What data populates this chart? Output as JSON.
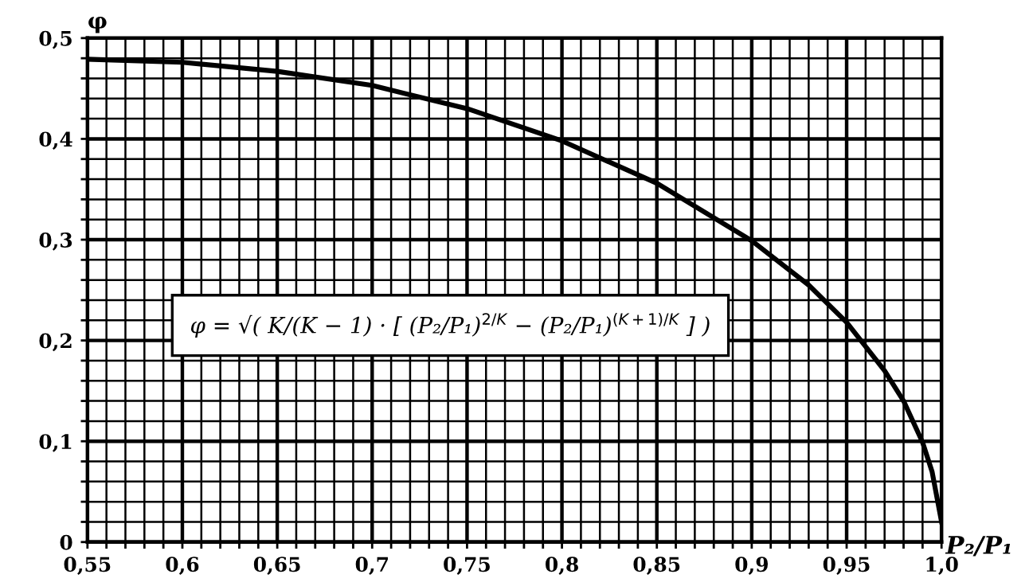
{
  "chart_data": {
    "type": "line",
    "xlabel": "P₂/P₁",
    "ylabel": "φ",
    "annotations": [
      "φ = √( K/(K − 1) · [ (P₂/P₁)$^{2/K}$ − (P₂/P₁)$^{(K+1)/K}$ ] )"
    ],
    "x": [
      0.55,
      0.6,
      0.65,
      0.7,
      0.75,
      0.8,
      0.85,
      0.9,
      0.93,
      0.95,
      0.97,
      0.98,
      0.99,
      0.995,
      1.0
    ],
    "series": [
      {
        "color": "#000000",
        "values": [
          0.479,
          0.476,
          0.467,
          0.453,
          0.43,
          0.398,
          0.356,
          0.299,
          0.255,
          0.218,
          0.17,
          0.14,
          0.099,
          0.07,
          0.02
        ]
      }
    ],
    "xlim": [
      0.55,
      1.0
    ],
    "ylim": [
      0,
      0.5
    ],
    "xticks": [
      {
        "value": 0.55,
        "label": "0,55"
      },
      {
        "value": 0.56,
        "label": null
      },
      {
        "value": 0.57,
        "label": null
      },
      {
        "value": 0.58,
        "label": null
      },
      {
        "value": 0.59,
        "label": null
      },
      {
        "value": 0.6,
        "label": "0,6"
      },
      {
        "value": 0.61,
        "label": null
      },
      {
        "value": 0.62,
        "label": null
      },
      {
        "value": 0.63,
        "label": null
      },
      {
        "value": 0.64,
        "label": null
      },
      {
        "value": 0.65,
        "label": "0,65"
      },
      {
        "value": 0.66,
        "label": null
      },
      {
        "value": 0.67,
        "label": null
      },
      {
        "value": 0.68,
        "label": null
      },
      {
        "value": 0.69,
        "label": null
      },
      {
        "value": 0.7,
        "label": "0,7"
      },
      {
        "value": 0.71,
        "label": null
      },
      {
        "value": 0.72,
        "label": null
      },
      {
        "value": 0.73,
        "label": null
      },
      {
        "value": 0.74,
        "label": null
      },
      {
        "value": 0.75,
        "label": "0,75"
      },
      {
        "value": 0.76,
        "label": null
      },
      {
        "value": 0.77,
        "label": null
      },
      {
        "value": 0.78,
        "label": null
      },
      {
        "value": 0.79,
        "label": null
      },
      {
        "value": 0.8,
        "label": "0,8"
      },
      {
        "value": 0.81,
        "label": null
      },
      {
        "value": 0.82,
        "label": null
      },
      {
        "value": 0.83,
        "label": null
      },
      {
        "value": 0.84,
        "label": null
      },
      {
        "value": 0.85,
        "label": "0,85"
      },
      {
        "value": 0.86,
        "label": null
      },
      {
        "value": 0.87,
        "label": null
      },
      {
        "value": 0.88,
        "label": null
      },
      {
        "value": 0.89,
        "label": null
      },
      {
        "value": 0.9,
        "label": "0,9"
      },
      {
        "value": 0.91,
        "label": null
      },
      {
        "value": 0.92,
        "label": null
      },
      {
        "value": 0.93,
        "label": null
      },
      {
        "value": 0.94,
        "label": null
      },
      {
        "value": 0.95,
        "label": "0,95"
      },
      {
        "value": 0.96,
        "label": null
      },
      {
        "value": 0.97,
        "label": null
      },
      {
        "value": 0.98,
        "label": null
      },
      {
        "value": 0.99,
        "label": null
      },
      {
        "value": 1.0,
        "label": "1,0"
      }
    ],
    "yticks": [
      0,
      {
        "value": 0.02,
        "label": null
      },
      {
        "value": 0.04,
        "label": null
      },
      {
        "value": 0.06,
        "label": null
      },
      {
        "value": 0.08,
        "label": null
      },
      {
        "value": 0.1,
        "label": "0,1"
      },
      {
        "value": 0.12,
        "label": null
      },
      {
        "value": 0.14,
        "label": null
      },
      {
        "value": 0.16,
        "label": null
      },
      {
        "value": 0.18,
        "label": null
      },
      {
        "value": 0.2,
        "label": "0,2"
      },
      {
        "value": 0.22,
        "label": null
      },
      {
        "value": 0.24,
        "label": null
      },
      {
        "value": 0.26,
        "label": null
      },
      {
        "value": 0.28,
        "label": null
      },
      {
        "value": 0.3,
        "label": "0,3"
      },
      {
        "value": 0.32,
        "label": null
      },
      {
        "value": 0.34,
        "label": null
      },
      {
        "value": 0.36,
        "label": null
      },
      {
        "value": 0.38,
        "label": null
      },
      {
        "value": 0.4,
        "label": "0,4"
      },
      {
        "value": 0.42,
        "label": null
      },
      {
        "value": 0.44,
        "label": null
      },
      {
        "value": 0.46,
        "label": null
      },
      {
        "value": 0.48,
        "label": null
      },
      {
        "value": 0.5,
        "label": "0,5"
      }
    ],
    "grid": true,
    "line_style": "solid"
  }
}
